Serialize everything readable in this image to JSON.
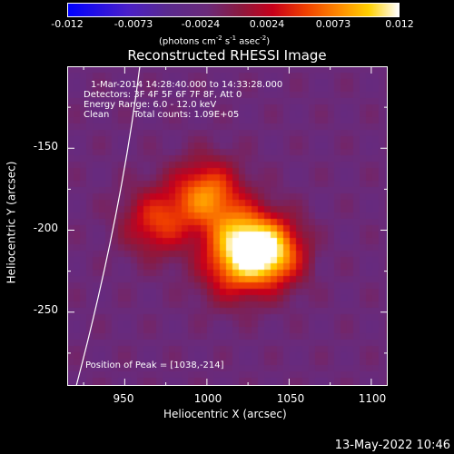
{
  "colorbar": {
    "ticks": [
      "-0.012",
      "-0.0073",
      "-0.0024",
      "0.0024",
      "0.0073",
      "0.012"
    ],
    "units_main": "(photons cm",
    "units_exp1": "-2",
    "units_mid1": " s",
    "units_exp2": "-1",
    "units_mid2": " asec",
    "units_exp3": "-2",
    "units_end": ")"
  },
  "chart_data": {
    "type": "heatmap",
    "title": "Reconstructed RHESSI Image",
    "xlabel": "Heliocentric X (arcsec)",
    "ylabel": "Heliocentric Y (arcsec)",
    "xlim": [
      915,
      1110
    ],
    "ylim": [
      -295,
      -100
    ],
    "x_ticks": [
      "950",
      "1000",
      "1050",
      "1100"
    ],
    "y_ticks": [
      "-150",
      "-200",
      "-250"
    ],
    "color_range": [
      -0.012,
      0.012
    ],
    "sources": [
      {
        "x": 1038,
        "y": -214,
        "strength": 1.0
      },
      {
        "x": 1020,
        "y": -205,
        "strength": 0.7
      },
      {
        "x": 1000,
        "y": -178,
        "strength": 0.75
      },
      {
        "x": 970,
        "y": -195,
        "strength": 0.55
      },
      {
        "x": 1015,
        "y": -225,
        "strength": 0.45
      }
    ],
    "annotations": {
      "line1": "1-Mar-2014 14:28:40.000 to 14:33:28.000",
      "line2": "Detectors: 3F 4F 5F 6F 7F 8F, Att 0",
      "line3": "Energy Range: 6.0 - 12.0 keV",
      "line4a": "Clean",
      "line4b": "Total counts: 1.09E+05",
      "peak": "Position of Peak = [1038,-214]"
    }
  },
  "footer": {
    "date": "13-May-2022 10:46"
  }
}
